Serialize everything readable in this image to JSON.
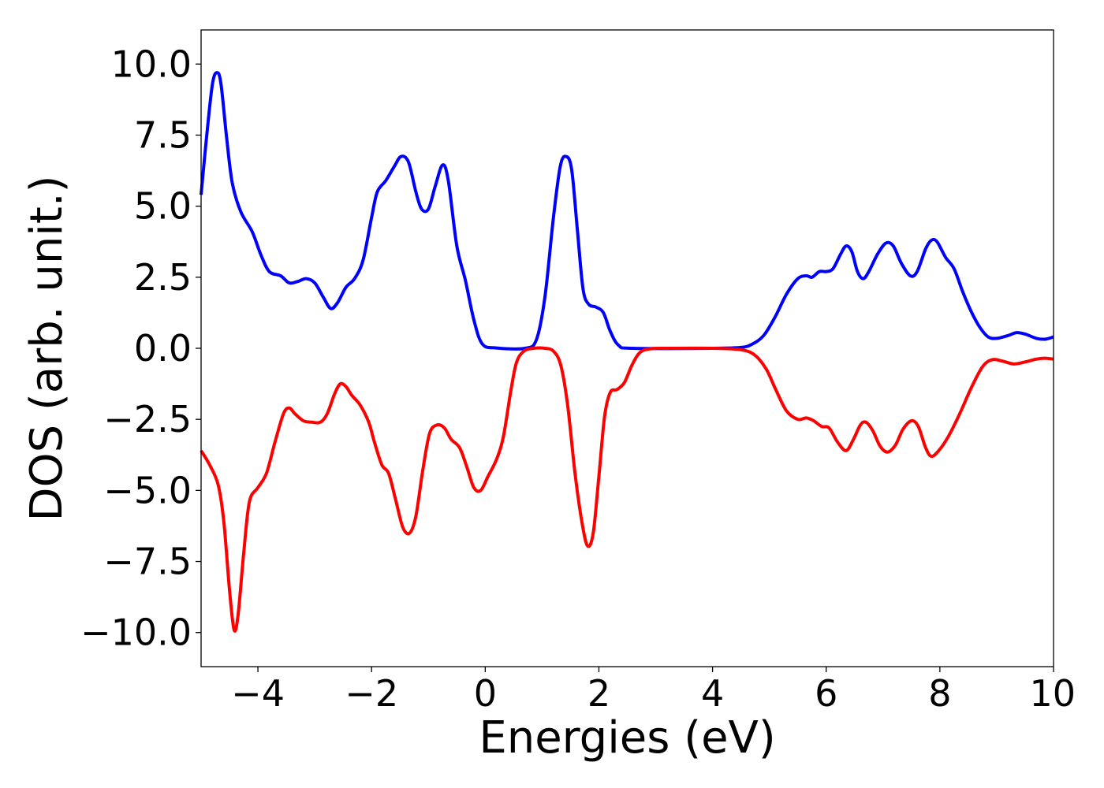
{
  "chart_data": {
    "type": "line",
    "title": "",
    "xlabel": "Energies (eV)",
    "ylabel": "DOS (arb. unit.)",
    "xlim": [
      -5,
      10
    ],
    "ylim": [
      -11.2,
      11.2
    ],
    "xticks": [
      -4,
      -2,
      0,
      2,
      4,
      6,
      8,
      10
    ],
    "xtick_labels": [
      "−4",
      "−2",
      "0",
      "2",
      "4",
      "6",
      "8",
      "10"
    ],
    "yticks": [
      10.0,
      7.5,
      5.0,
      2.5,
      0.0,
      -2.5,
      -5.0,
      -7.5,
      -10.0
    ],
    "ytick_labels": [
      "10.0",
      "7.5",
      "5.0",
      "2.5",
      "0.0",
      "−2.5",
      "−5.0",
      "−7.5",
      "−10.0"
    ],
    "grid": false,
    "legend": "none",
    "series": [
      {
        "color": "#0000ff",
        "points": [
          [
            -5.0,
            5.4
          ],
          [
            -4.9,
            7.5
          ],
          [
            -4.8,
            9.3
          ],
          [
            -4.72,
            9.7
          ],
          [
            -4.65,
            9.3
          ],
          [
            -4.55,
            7.4
          ],
          [
            -4.45,
            5.8
          ],
          [
            -4.3,
            4.8
          ],
          [
            -4.1,
            4.1
          ],
          [
            -3.95,
            3.3
          ],
          [
            -3.8,
            2.7
          ],
          [
            -3.6,
            2.55
          ],
          [
            -3.45,
            2.3
          ],
          [
            -3.3,
            2.35
          ],
          [
            -3.15,
            2.45
          ],
          [
            -3.0,
            2.3
          ],
          [
            -2.85,
            1.8
          ],
          [
            -2.72,
            1.4
          ],
          [
            -2.6,
            1.6
          ],
          [
            -2.45,
            2.15
          ],
          [
            -2.3,
            2.45
          ],
          [
            -2.15,
            3.1
          ],
          [
            -2.0,
            4.6
          ],
          [
            -1.9,
            5.5
          ],
          [
            -1.75,
            5.9
          ],
          [
            -1.6,
            6.4
          ],
          [
            -1.48,
            6.75
          ],
          [
            -1.35,
            6.55
          ],
          [
            -1.22,
            5.5
          ],
          [
            -1.12,
            4.9
          ],
          [
            -1.0,
            4.9
          ],
          [
            -0.88,
            5.7
          ],
          [
            -0.75,
            6.45
          ],
          [
            -0.65,
            5.9
          ],
          [
            -0.5,
            3.6
          ],
          [
            -0.35,
            2.4
          ],
          [
            -0.2,
            1.0
          ],
          [
            -0.05,
            0.15
          ],
          [
            0.2,
            0.01
          ],
          [
            0.7,
            0.0
          ],
          [
            0.9,
            0.3
          ],
          [
            1.05,
            1.8
          ],
          [
            1.2,
            4.6
          ],
          [
            1.32,
            6.4
          ],
          [
            1.42,
            6.75
          ],
          [
            1.52,
            6.3
          ],
          [
            1.62,
            4.2
          ],
          [
            1.72,
            2.1
          ],
          [
            1.82,
            1.55
          ],
          [
            1.95,
            1.45
          ],
          [
            2.08,
            1.25
          ],
          [
            2.2,
            0.6
          ],
          [
            2.35,
            0.1
          ],
          [
            2.6,
            0.0
          ],
          [
            4.0,
            0.0
          ],
          [
            4.5,
            0.03
          ],
          [
            4.7,
            0.15
          ],
          [
            4.9,
            0.45
          ],
          [
            5.1,
            1.1
          ],
          [
            5.3,
            1.9
          ],
          [
            5.5,
            2.45
          ],
          [
            5.65,
            2.55
          ],
          [
            5.75,
            2.5
          ],
          [
            5.88,
            2.7
          ],
          [
            6.0,
            2.7
          ],
          [
            6.12,
            2.8
          ],
          [
            6.25,
            3.3
          ],
          [
            6.35,
            3.6
          ],
          [
            6.45,
            3.4
          ],
          [
            6.55,
            2.7
          ],
          [
            6.65,
            2.45
          ],
          [
            6.75,
            2.7
          ],
          [
            6.9,
            3.3
          ],
          [
            7.05,
            3.7
          ],
          [
            7.18,
            3.6
          ],
          [
            7.32,
            3.0
          ],
          [
            7.48,
            2.55
          ],
          [
            7.6,
            2.7
          ],
          [
            7.75,
            3.5
          ],
          [
            7.85,
            3.8
          ],
          [
            7.95,
            3.75
          ],
          [
            8.1,
            3.2
          ],
          [
            8.25,
            2.8
          ],
          [
            8.4,
            2.0
          ],
          [
            8.55,
            1.3
          ],
          [
            8.7,
            0.75
          ],
          [
            8.85,
            0.4
          ],
          [
            9.0,
            0.35
          ],
          [
            9.2,
            0.45
          ],
          [
            9.35,
            0.55
          ],
          [
            9.5,
            0.5
          ],
          [
            9.7,
            0.35
          ],
          [
            9.85,
            0.32
          ],
          [
            10.0,
            0.4
          ]
        ]
      },
      {
        "color": "#ff0000",
        "points": [
          [
            -5.0,
            -3.6
          ],
          [
            -4.85,
            -4.1
          ],
          [
            -4.7,
            -4.8
          ],
          [
            -4.6,
            -6.1
          ],
          [
            -4.5,
            -8.5
          ],
          [
            -4.42,
            -9.9
          ],
          [
            -4.35,
            -9.4
          ],
          [
            -4.25,
            -7.2
          ],
          [
            -4.15,
            -5.4
          ],
          [
            -4.0,
            -4.9
          ],
          [
            -3.85,
            -4.4
          ],
          [
            -3.7,
            -3.3
          ],
          [
            -3.55,
            -2.3
          ],
          [
            -3.45,
            -2.1
          ],
          [
            -3.35,
            -2.3
          ],
          [
            -3.2,
            -2.55
          ],
          [
            -3.05,
            -2.6
          ],
          [
            -2.9,
            -2.6
          ],
          [
            -2.78,
            -2.3
          ],
          [
            -2.65,
            -1.6
          ],
          [
            -2.55,
            -1.25
          ],
          [
            -2.45,
            -1.35
          ],
          [
            -2.35,
            -1.65
          ],
          [
            -2.2,
            -2.0
          ],
          [
            -2.05,
            -2.6
          ],
          [
            -1.95,
            -3.3
          ],
          [
            -1.82,
            -4.1
          ],
          [
            -1.7,
            -4.4
          ],
          [
            -1.58,
            -5.3
          ],
          [
            -1.45,
            -6.3
          ],
          [
            -1.33,
            -6.5
          ],
          [
            -1.22,
            -5.9
          ],
          [
            -1.1,
            -4.3
          ],
          [
            -0.98,
            -3.0
          ],
          [
            -0.85,
            -2.7
          ],
          [
            -0.72,
            -2.8
          ],
          [
            -0.6,
            -3.2
          ],
          [
            -0.45,
            -3.5
          ],
          [
            -0.32,
            -4.2
          ],
          [
            -0.2,
            -4.9
          ],
          [
            -0.08,
            -5.0
          ],
          [
            0.05,
            -4.5
          ],
          [
            0.2,
            -3.9
          ],
          [
            0.32,
            -3.1
          ],
          [
            0.45,
            -1.5
          ],
          [
            0.55,
            -0.5
          ],
          [
            0.68,
            -0.1
          ],
          [
            0.85,
            0.0
          ],
          [
            1.05,
            0.0
          ],
          [
            1.2,
            -0.1
          ],
          [
            1.33,
            -0.6
          ],
          [
            1.45,
            -2.0
          ],
          [
            1.58,
            -4.4
          ],
          [
            1.7,
            -6.1
          ],
          [
            1.8,
            -6.95
          ],
          [
            1.9,
            -6.5
          ],
          [
            2.0,
            -4.5
          ],
          [
            2.1,
            -2.4
          ],
          [
            2.2,
            -1.55
          ],
          [
            2.32,
            -1.45
          ],
          [
            2.45,
            -1.2
          ],
          [
            2.58,
            -0.6
          ],
          [
            2.72,
            -0.15
          ],
          [
            2.9,
            -0.02
          ],
          [
            3.2,
            0.0
          ],
          [
            4.0,
            0.0
          ],
          [
            4.5,
            -0.05
          ],
          [
            4.75,
            -0.25
          ],
          [
            4.95,
            -0.75
          ],
          [
            5.1,
            -1.4
          ],
          [
            5.3,
            -2.2
          ],
          [
            5.5,
            -2.5
          ],
          [
            5.65,
            -2.45
          ],
          [
            5.78,
            -2.55
          ],
          [
            5.92,
            -2.75
          ],
          [
            6.05,
            -2.8
          ],
          [
            6.2,
            -3.3
          ],
          [
            6.35,
            -3.6
          ],
          [
            6.48,
            -3.2
          ],
          [
            6.6,
            -2.7
          ],
          [
            6.7,
            -2.6
          ],
          [
            6.82,
            -2.9
          ],
          [
            6.95,
            -3.45
          ],
          [
            7.08,
            -3.65
          ],
          [
            7.22,
            -3.4
          ],
          [
            7.35,
            -2.85
          ],
          [
            7.5,
            -2.55
          ],
          [
            7.62,
            -2.75
          ],
          [
            7.75,
            -3.5
          ],
          [
            7.85,
            -3.8
          ],
          [
            7.98,
            -3.6
          ],
          [
            8.15,
            -3.1
          ],
          [
            8.35,
            -2.3
          ],
          [
            8.55,
            -1.4
          ],
          [
            8.75,
            -0.65
          ],
          [
            8.92,
            -0.4
          ],
          [
            9.1,
            -0.45
          ],
          [
            9.3,
            -0.55
          ],
          [
            9.5,
            -0.48
          ],
          [
            9.7,
            -0.38
          ],
          [
            9.85,
            -0.35
          ],
          [
            10.0,
            -0.38
          ]
        ]
      }
    ]
  }
}
